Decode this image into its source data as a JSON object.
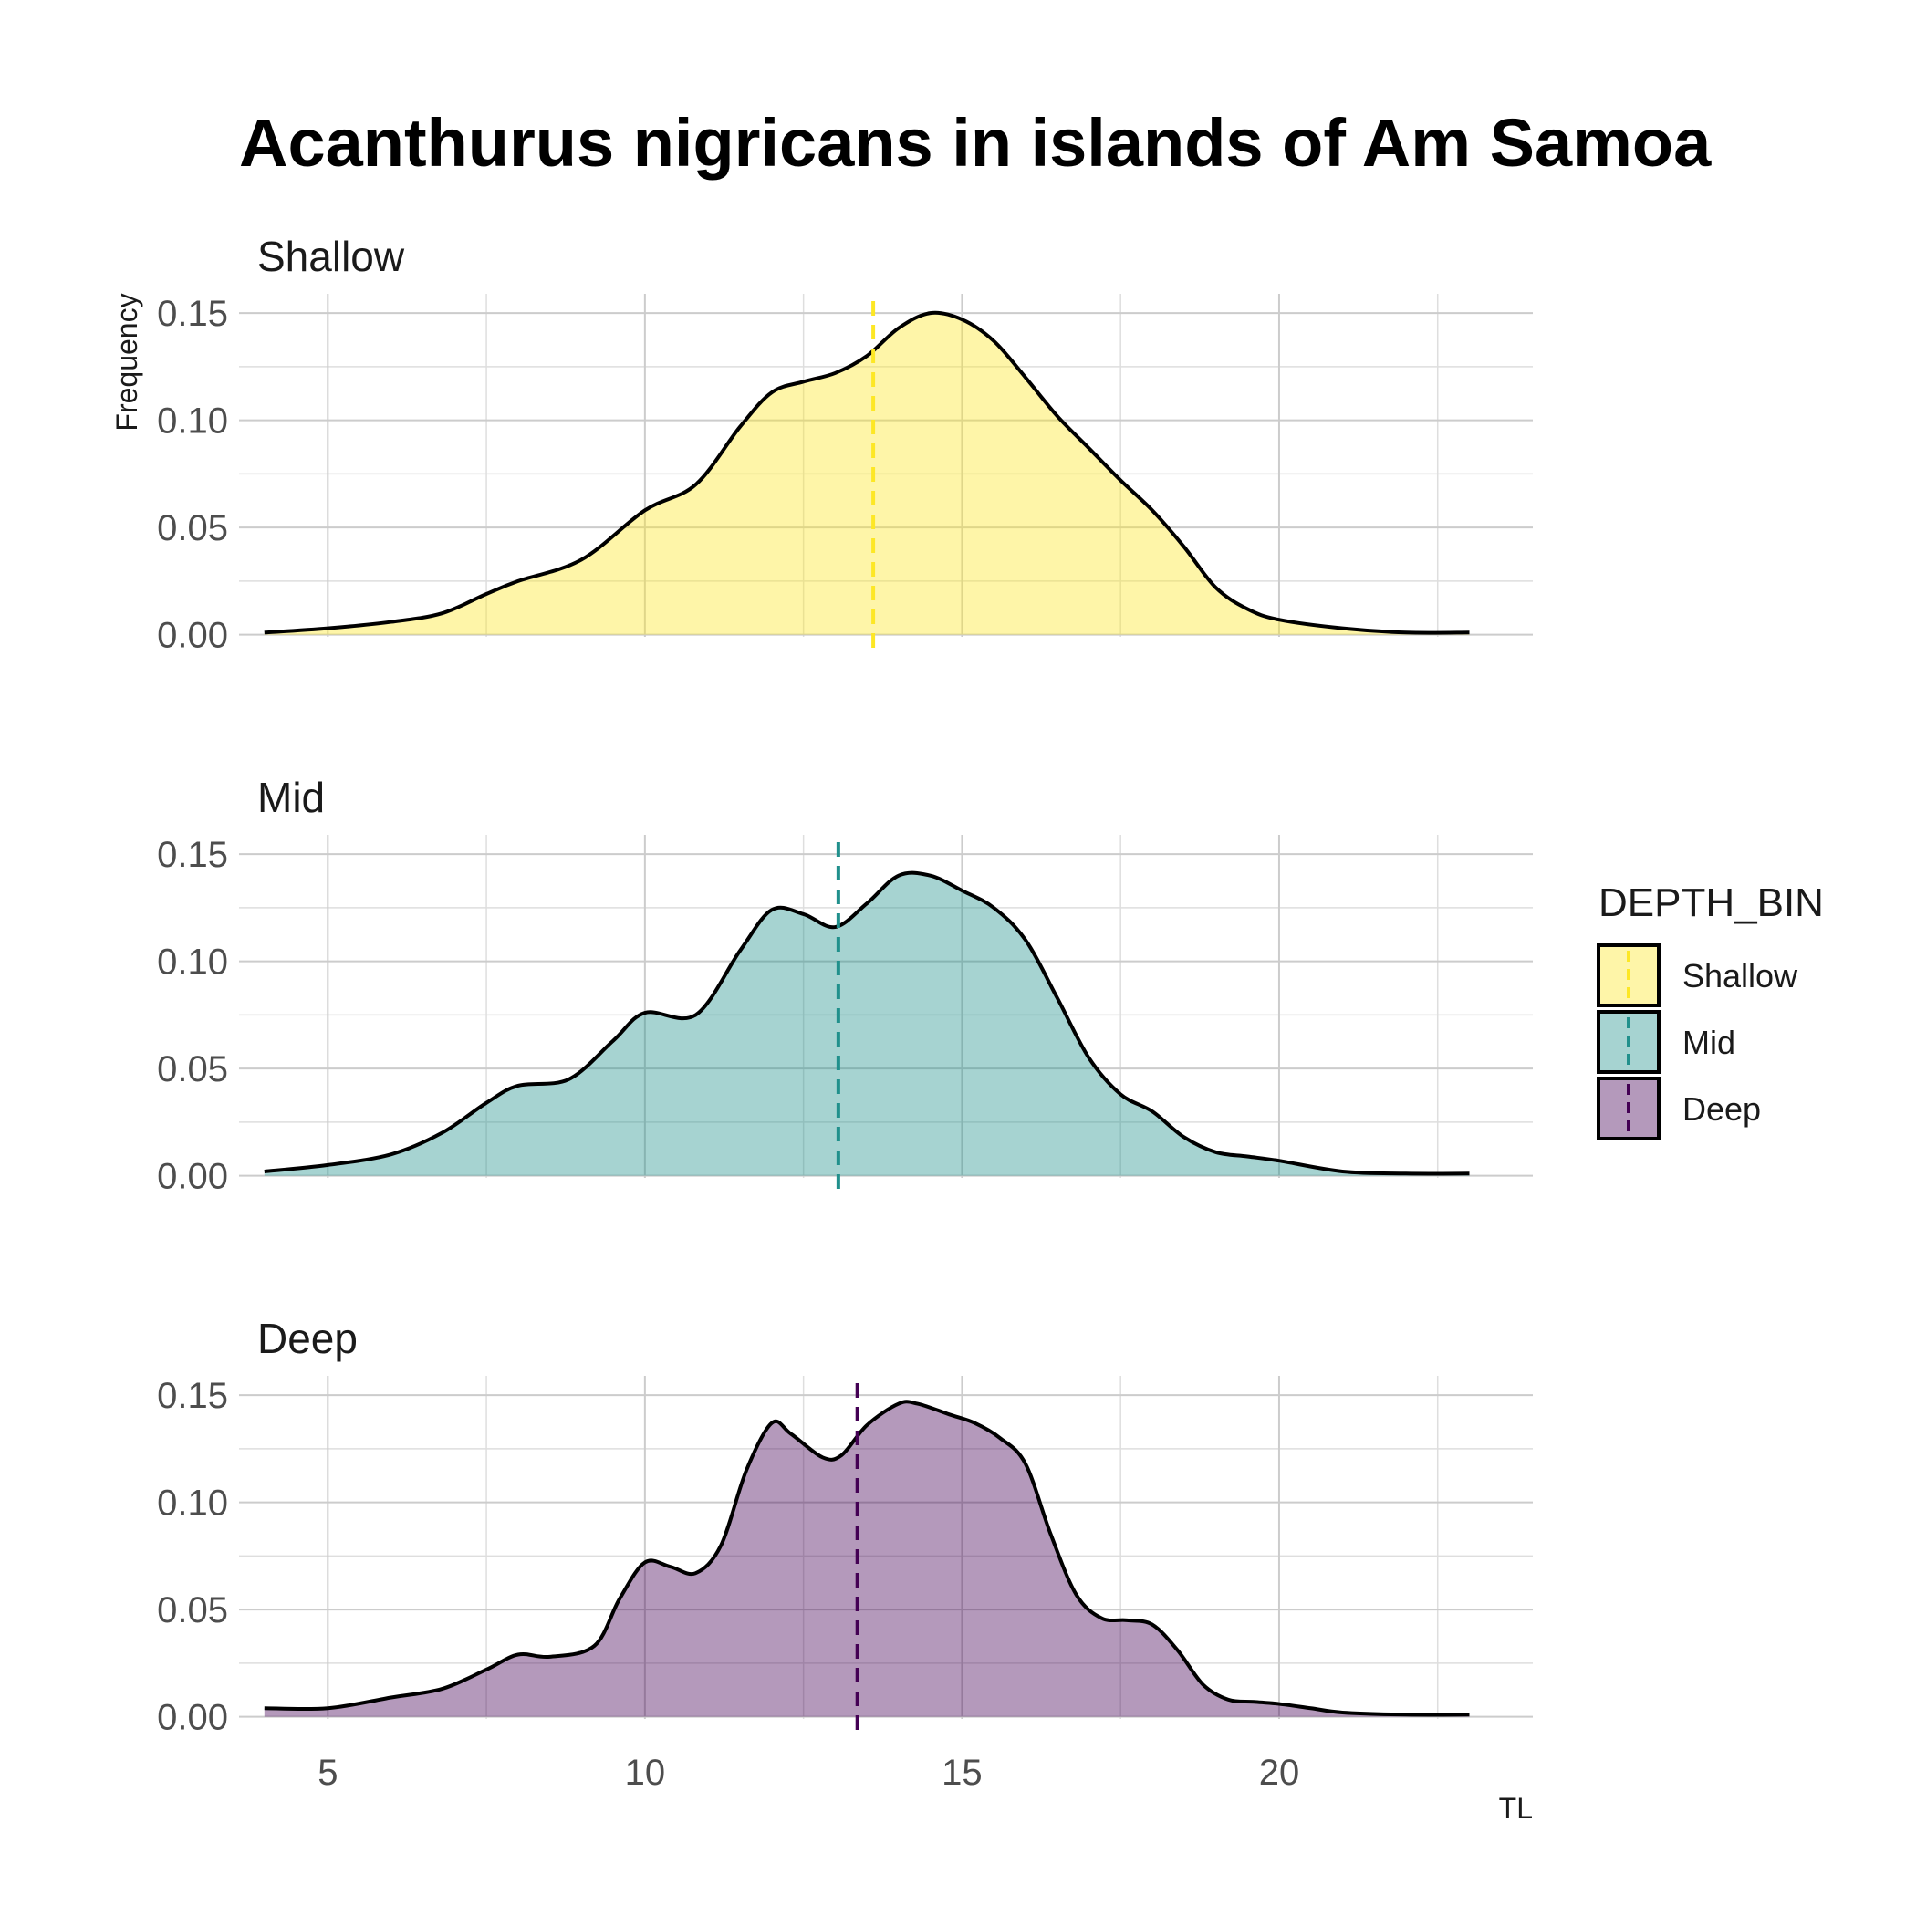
{
  "chart_data": {
    "type": "area",
    "title": "Acanthurus nigricans in islands of Am Samoa",
    "xlabel": "TL",
    "ylabel": "Frequency",
    "xlim": [
      3.6,
      24.0
    ],
    "ylim": [
      -0.001,
      0.159
    ],
    "x_ticks": [
      5,
      10,
      15,
      20
    ],
    "y_ticks": [
      0.0,
      0.05,
      0.1,
      0.15
    ],
    "y_tick_labels": [
      "0.00",
      "0.05",
      "0.10",
      "0.15"
    ],
    "x_tick_labels": [
      "5",
      "10",
      "15",
      "20"
    ],
    "grid": true,
    "legend": {
      "title": "DEPTH_BIN",
      "position": "right",
      "entries": [
        "Shallow",
        "Mid",
        "Deep"
      ]
    },
    "series": [
      {
        "name": "Shallow",
        "color": "#FDE725",
        "mean": 13.6,
        "x": [
          4.0,
          5.0,
          6.0,
          6.8,
          7.5,
          8.0,
          9.0,
          10.0,
          10.8,
          11.5,
          12.0,
          12.5,
          13.0,
          13.5,
          14.0,
          14.5,
          15.0,
          15.5,
          16.0,
          16.5,
          17.0,
          17.5,
          18.0,
          18.5,
          19.0,
          19.5,
          20.0,
          21.0,
          22.0,
          23.0
        ],
        "y": [
          0.001,
          0.003,
          0.006,
          0.01,
          0.019,
          0.025,
          0.035,
          0.058,
          0.07,
          0.097,
          0.113,
          0.118,
          0.122,
          0.13,
          0.143,
          0.15,
          0.147,
          0.137,
          0.12,
          0.102,
          0.087,
          0.072,
          0.058,
          0.041,
          0.022,
          0.012,
          0.007,
          0.003,
          0.001,
          0.001
        ]
      },
      {
        "name": "Mid",
        "color": "#21908C",
        "mean": 13.05,
        "x": [
          4.0,
          5.0,
          6.0,
          6.8,
          7.5,
          8.0,
          8.8,
          9.5,
          10.0,
          10.8,
          11.5,
          12.0,
          12.5,
          13.0,
          13.5,
          14.0,
          14.5,
          15.0,
          15.5,
          16.0,
          16.5,
          17.0,
          17.5,
          18.0,
          18.5,
          19.0,
          19.5,
          20.0,
          21.0,
          22.0,
          23.0
        ],
        "y": [
          0.002,
          0.005,
          0.01,
          0.02,
          0.034,
          0.042,
          0.045,
          0.063,
          0.076,
          0.075,
          0.105,
          0.124,
          0.122,
          0.116,
          0.127,
          0.14,
          0.14,
          0.133,
          0.125,
          0.11,
          0.083,
          0.055,
          0.038,
          0.03,
          0.018,
          0.011,
          0.009,
          0.007,
          0.002,
          0.001,
          0.001
        ]
      },
      {
        "name": "Deep",
        "color": "#440154",
        "mean": 13.35,
        "x": [
          4.0,
          5.0,
          6.0,
          6.8,
          7.5,
          8.0,
          8.5,
          9.2,
          9.6,
          10.0,
          10.4,
          10.8,
          11.2,
          11.6,
          12.0,
          12.3,
          12.8,
          13.1,
          13.5,
          14.0,
          14.3,
          14.8,
          15.2,
          15.6,
          16.0,
          16.4,
          16.8,
          17.2,
          17.6,
          18.0,
          18.4,
          18.8,
          19.2,
          19.6,
          20.0,
          20.5,
          21.0,
          22.0,
          23.0
        ],
        "y": [
          0.004,
          0.004,
          0.009,
          0.013,
          0.022,
          0.029,
          0.028,
          0.033,
          0.055,
          0.072,
          0.07,
          0.067,
          0.08,
          0.115,
          0.137,
          0.132,
          0.121,
          0.122,
          0.136,
          0.146,
          0.146,
          0.141,
          0.137,
          0.13,
          0.118,
          0.085,
          0.057,
          0.046,
          0.045,
          0.043,
          0.031,
          0.015,
          0.008,
          0.007,
          0.006,
          0.004,
          0.002,
          0.001,
          0.001
        ]
      }
    ]
  }
}
